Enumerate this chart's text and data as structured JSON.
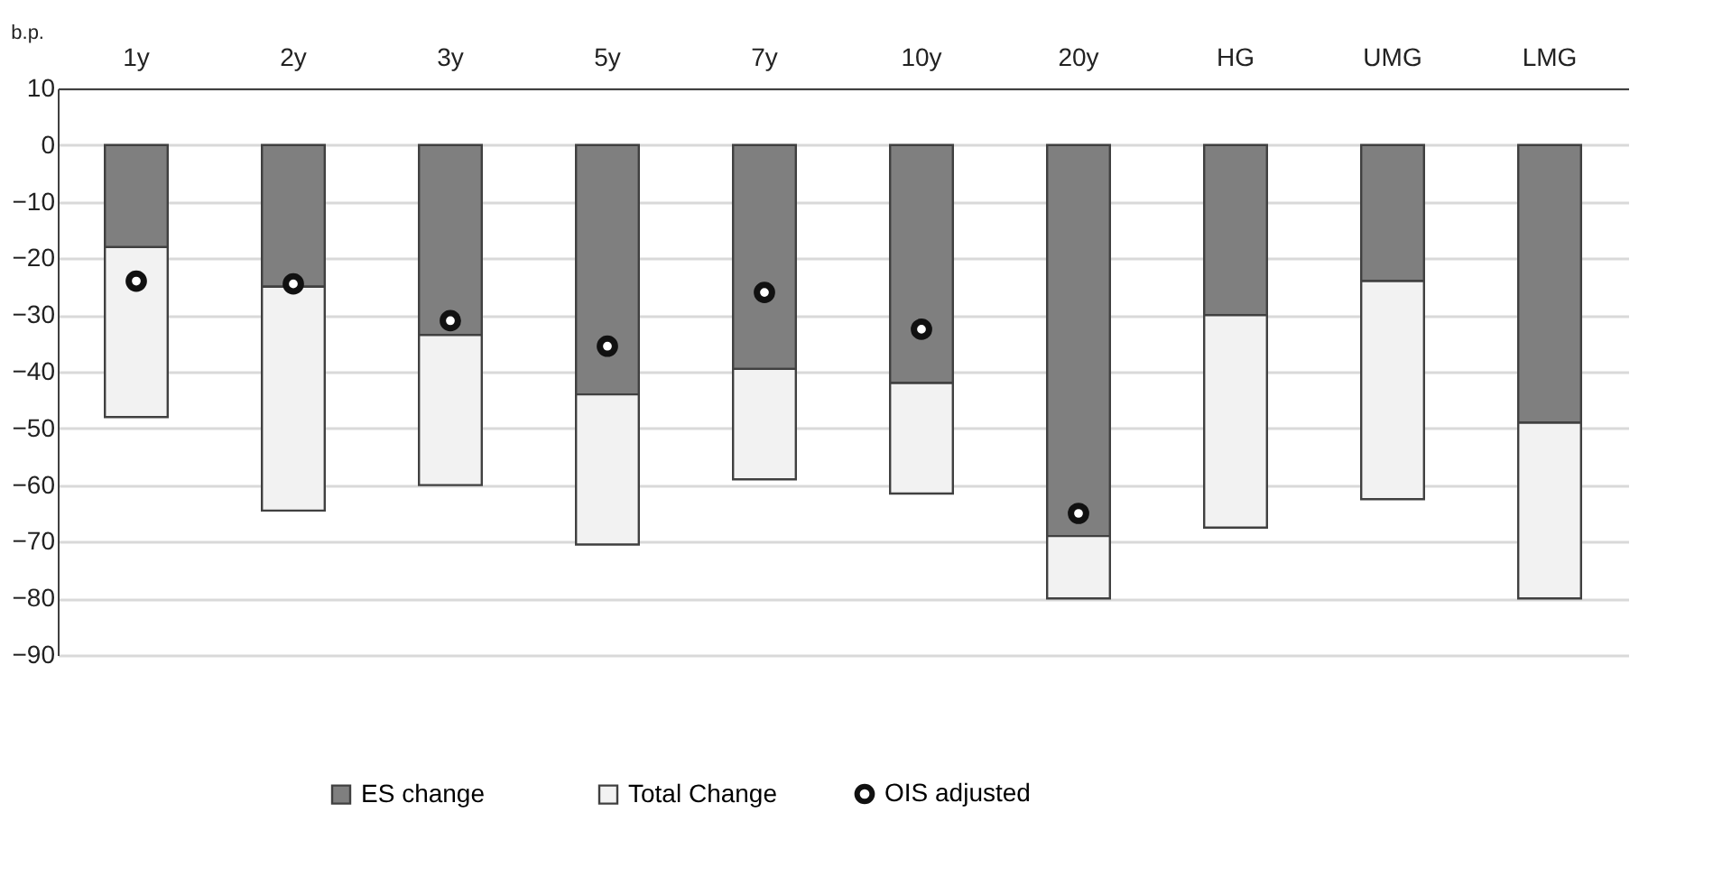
{
  "chart_data": {
    "type": "bar",
    "stacked": true,
    "ylabel": "b.p.",
    "categories": [
      "1y",
      "2y",
      "3y",
      "5y",
      "7y",
      "10y",
      "20y",
      "HG",
      "UMG",
      "LMG"
    ],
    "series": [
      {
        "name": "ES change",
        "color": "#7f7f7f",
        "values": [
          -18,
          -25,
          -33.5,
          -44,
          -39.5,
          -42,
          -69,
          -30,
          -24,
          -49
        ]
      },
      {
        "name": "Total Change",
        "color": "#f2f2f2",
        "values": [
          -30,
          -39.5,
          -26.5,
          -26.5,
          -19.5,
          -19.5,
          -11,
          -37.5,
          -38.5,
          -31
        ]
      },
      {
        "name": "OIS adjusted",
        "type": "scatter",
        "color": "#ffffff",
        "values": [
          -24,
          -24.5,
          -31,
          -35.5,
          -26,
          -32.5,
          -65,
          null,
          null,
          null
        ]
      }
    ],
    "ylim": [
      -90,
      10
    ],
    "yticks": [
      -90,
      -80,
      -70,
      -60,
      -50,
      -40,
      -30,
      -20,
      -10,
      0,
      10
    ],
    "grid": "y",
    "legend": "bottom",
    "marker": "circle"
  }
}
